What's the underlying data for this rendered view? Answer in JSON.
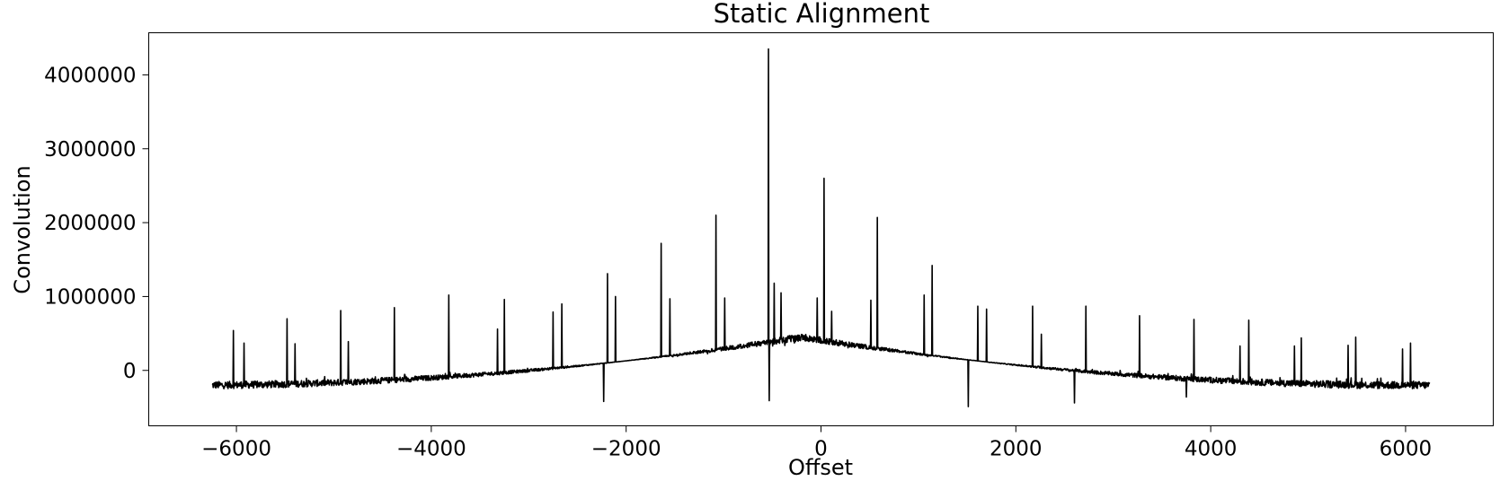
{
  "chart_data": {
    "type": "line",
    "title": "Static Alignment",
    "xlabel": "Offset",
    "ylabel": "Convolution",
    "xlim": [
      -6900,
      6900
    ],
    "ylim": [
      -750000,
      4570000
    ],
    "x_ticks": [
      -6000,
      -4000,
      -2000,
      0,
      2000,
      4000,
      6000
    ],
    "x_tick_labels": [
      "−6000",
      "−4000",
      "−2000",
      "0",
      "2000",
      "4000",
      "6000"
    ],
    "y_ticks": [
      0,
      1000000,
      2000000,
      3000000,
      4000000
    ],
    "y_tick_labels": [
      "0",
      "1000000",
      "2000000",
      "3000000",
      "4000000"
    ],
    "grid": false,
    "legend": "none",
    "line_color": "#000000",
    "x_range": [
      -6250,
      6250
    ],
    "noise_band_min": [
      -250000,
      500000
    ],
    "noise_band_max": [
      -150000,
      400000
    ],
    "peaks": [
      {
        "x": -6030,
        "y": 540000
      },
      {
        "x": -5920,
        "y": 370000
      },
      {
        "x": -5480,
        "y": 700000
      },
      {
        "x": -5400,
        "y": 360000
      },
      {
        "x": -4930,
        "y": 810000
      },
      {
        "x": -4850,
        "y": 390000
      },
      {
        "x": -4380,
        "y": 850000
      },
      {
        "x": -3820,
        "y": 1020000
      },
      {
        "x": -3320,
        "y": 560000
      },
      {
        "x": -3250,
        "y": 960000
      },
      {
        "x": -2750,
        "y": 790000
      },
      {
        "x": -2660,
        "y": 900000
      },
      {
        "x": -2190,
        "y": 1310000
      },
      {
        "x": -2110,
        "y": 1000000
      },
      {
        "x": -1640,
        "y": 1720000
      },
      {
        "x": -1550,
        "y": 970000
      },
      {
        "x": -1080,
        "y": 2100000
      },
      {
        "x": -990,
        "y": 980000
      },
      {
        "x": -540,
        "y": 4350000
      },
      {
        "x": -480,
        "y": 1180000
      },
      {
        "x": -410,
        "y": 1050000
      },
      {
        "x": -40,
        "y": 980000
      },
      {
        "x": 30,
        "y": 2600000
      },
      {
        "x": 110,
        "y": 800000
      },
      {
        "x": 510,
        "y": 950000
      },
      {
        "x": 580,
        "y": 2070000
      },
      {
        "x": 1060,
        "y": 1020000
      },
      {
        "x": 1140,
        "y": 1420000
      },
      {
        "x": 1610,
        "y": 870000
      },
      {
        "x": 1700,
        "y": 830000
      },
      {
        "x": 2170,
        "y": 870000
      },
      {
        "x": 2260,
        "y": 490000
      },
      {
        "x": 2720,
        "y": 870000
      },
      {
        "x": 3270,
        "y": 740000
      },
      {
        "x": 3830,
        "y": 690000
      },
      {
        "x": 4300,
        "y": 330000
      },
      {
        "x": 4390,
        "y": 680000
      },
      {
        "x": 4860,
        "y": 330000
      },
      {
        "x": 4930,
        "y": 440000
      },
      {
        "x": 5410,
        "y": 340000
      },
      {
        "x": 5490,
        "y": 450000
      },
      {
        "x": 5970,
        "y": 290000
      },
      {
        "x": 6050,
        "y": 370000
      }
    ],
    "troughs": [
      {
        "x": -2230,
        "y": -420000
      },
      {
        "x": -530,
        "y": -410000
      },
      {
        "x": 1510,
        "y": -490000
      },
      {
        "x": 2600,
        "y": -440000
      },
      {
        "x": 3750,
        "y": -360000
      }
    ]
  }
}
